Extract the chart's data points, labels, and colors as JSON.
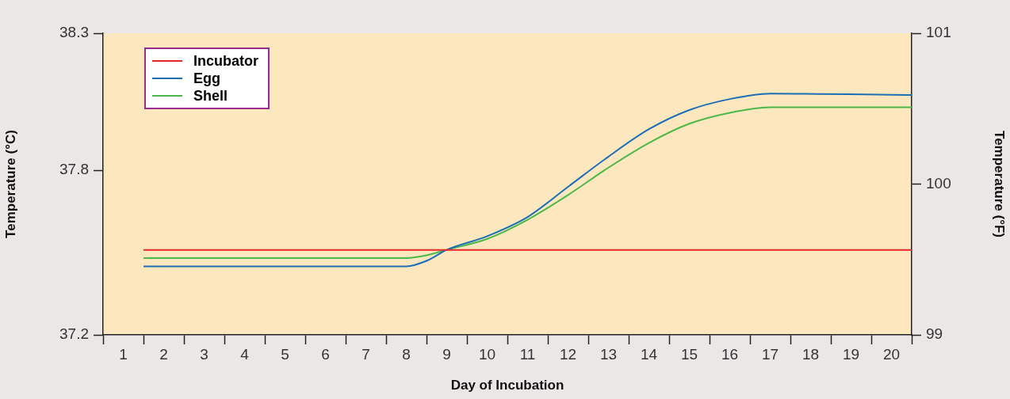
{
  "chart_data": {
    "type": "line",
    "xlabel": "Day of Incubation",
    "ylabel": "Temperature (°C)",
    "y2label": "Temperature (°F)",
    "xlim": [
      0.5,
      20.5
    ],
    "xticks": [
      {
        "value": 0.5,
        "label": null
      },
      1,
      {
        "value": 1.5,
        "label": null
      },
      2,
      {
        "value": 2.5,
        "label": null
      },
      3,
      {
        "value": 3.5,
        "label": null
      },
      4,
      {
        "value": 4.5,
        "label": null
      },
      5,
      {
        "value": 5.5,
        "label": null
      },
      6,
      {
        "value": 6.5,
        "label": null
      },
      7,
      {
        "value": 7.5,
        "label": null
      },
      8,
      {
        "value": 8.5,
        "label": null
      },
      9,
      {
        "value": 9.5,
        "label": null
      },
      10,
      {
        "value": 10.5,
        "label": null
      },
      11,
      {
        "value": 11.5,
        "label": null
      },
      12,
      {
        "value": 12.5,
        "label": null
      },
      13,
      {
        "value": 13.5,
        "label": null
      },
      14,
      {
        "value": 14.5,
        "label": null
      },
      15,
      {
        "value": 15.5,
        "label": null
      },
      16,
      {
        "value": 16.5,
        "label": null
      },
      17,
      {
        "value": 17.5,
        "label": null
      },
      18,
      {
        "value": 18.5,
        "label": null
      },
      19,
      {
        "value": 19.5,
        "label": null
      },
      20,
      {
        "value": 20.5,
        "label": null
      }
    ],
    "ylim": [
      37.2,
      38.3
    ],
    "yticks": [
      37.2,
      37.8,
      38.3
    ],
    "y2lim": [
      99,
      101
    ],
    "y2ticks": [
      99,
      100,
      101
    ],
    "legend": "top left",
    "marker": "none",
    "line_style": "solid",
    "series": [
      {
        "name": "Incubator",
        "color": "#e8262a",
        "x": [
          1.5,
          20.5
        ],
        "values": [
          37.51,
          37.51
        ]
      },
      {
        "name": "Egg",
        "color": "#1a6eb5",
        "x": [
          1.5,
          8,
          8.5,
          9,
          10,
          11,
          12,
          13,
          14,
          15,
          16,
          17,
          20.5
        ],
        "values": [
          37.45,
          37.45,
          37.47,
          37.51,
          37.56,
          37.63,
          37.74,
          37.85,
          37.95,
          38.02,
          38.06,
          38.08,
          38.075
        ]
      },
      {
        "name": "Shell",
        "color": "#4bb848",
        "x": [
          1.5,
          8,
          8.5,
          9,
          10,
          11,
          12,
          13,
          14,
          15,
          16,
          17,
          20.5
        ],
        "values": [
          37.48,
          37.48,
          37.49,
          37.51,
          37.55,
          37.62,
          37.71,
          37.81,
          37.9,
          37.97,
          38.01,
          38.03,
          38.03
        ]
      }
    ]
  }
}
